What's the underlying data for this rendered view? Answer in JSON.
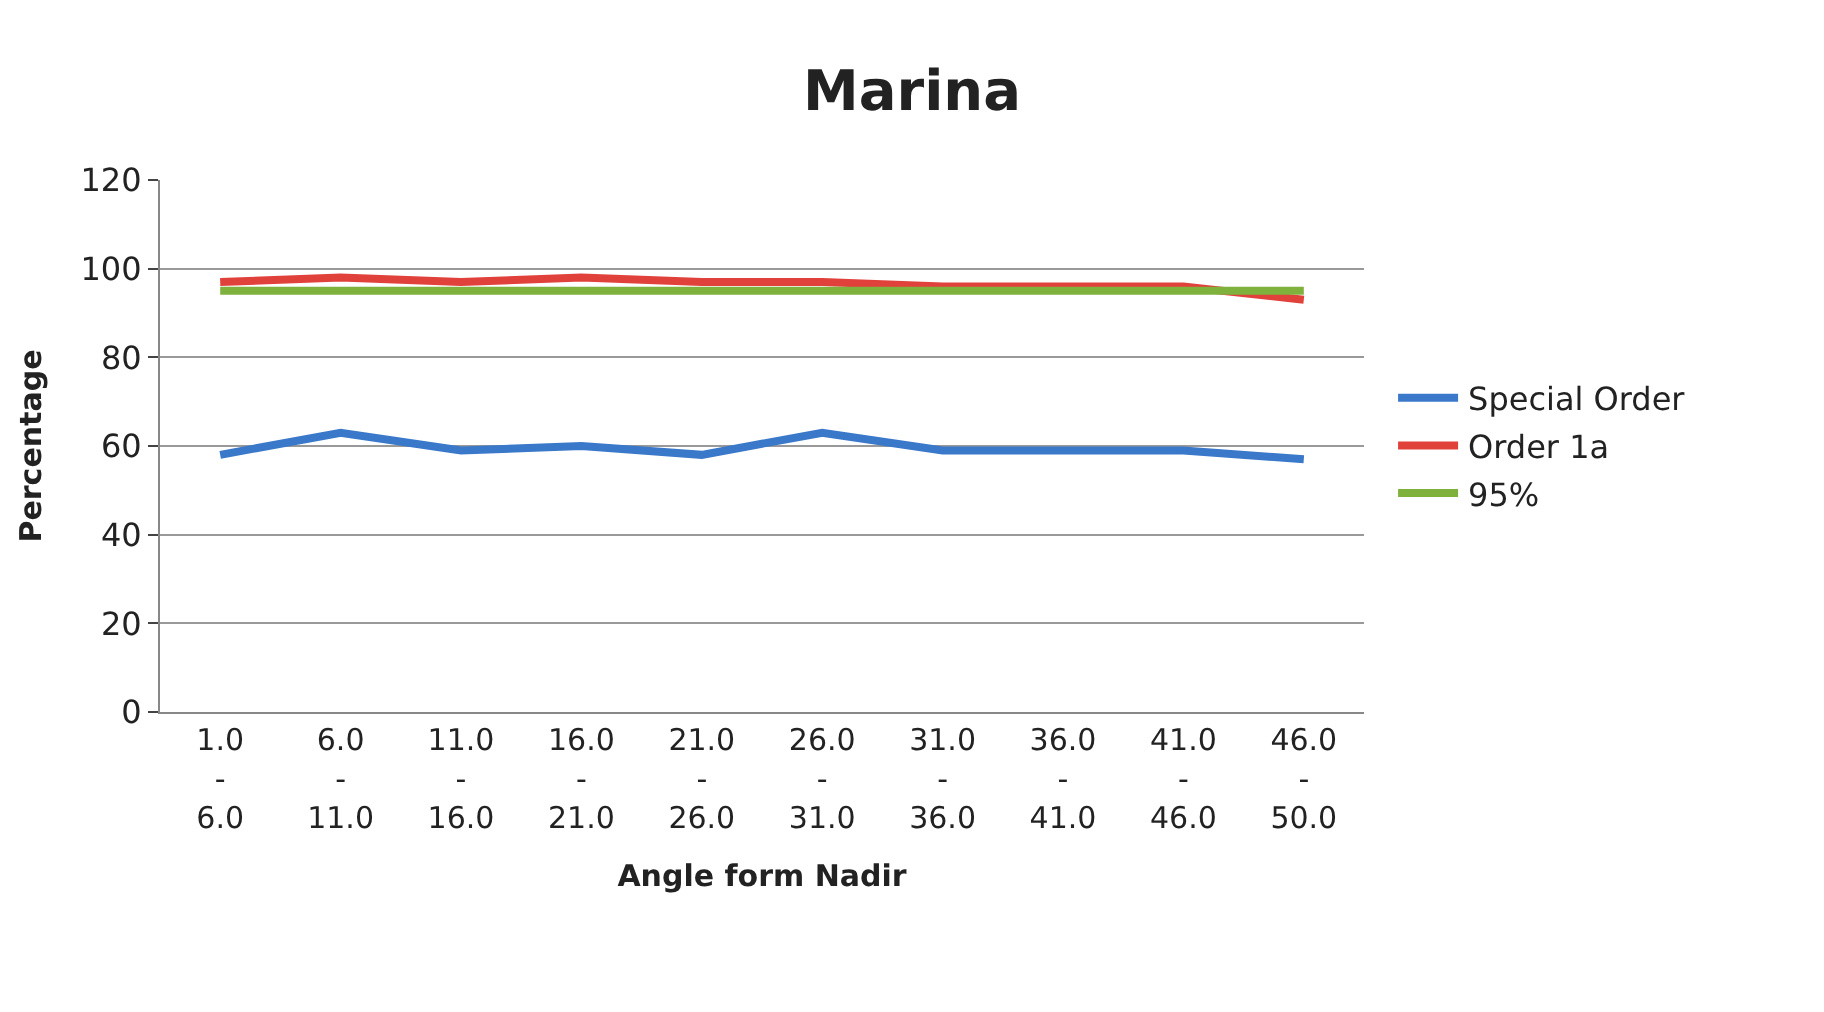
{
  "chart_data": {
    "type": "line",
    "title": "Marina",
    "xlabel": "Angle form Nadir",
    "ylabel": "Percentage",
    "categories": [
      "1.0 - 6.0",
      "6.0 - 11.0",
      "11.0 - 16.0",
      "16.0 - 21.0",
      "21.0 - 26.0",
      "26.0 - 31.0",
      "31.0 - 36.0",
      "36.0 - 41.0",
      "41.0 - 46.0",
      "46.0 - 50.0"
    ],
    "series": [
      {
        "name": "Special Order",
        "color": "#3a78c9",
        "values": [
          58,
          63,
          59,
          60,
          58,
          63,
          59,
          59,
          59,
          57
        ]
      },
      {
        "name": "Order 1a",
        "color": "#e0413b",
        "values": [
          97,
          98,
          97,
          98,
          97,
          97,
          96,
          96,
          96,
          93
        ]
      },
      {
        "name": "95%",
        "color": "#7fb13d",
        "values": [
          95,
          95,
          95,
          95,
          95,
          95,
          95,
          95,
          95,
          95
        ]
      }
    ],
    "ylim": [
      0,
      120
    ],
    "yticks": [
      0,
      20,
      40,
      60,
      80,
      100,
      120
    ],
    "grid": "y",
    "legend": "right",
    "marker": "none",
    "line_style": "solid"
  }
}
